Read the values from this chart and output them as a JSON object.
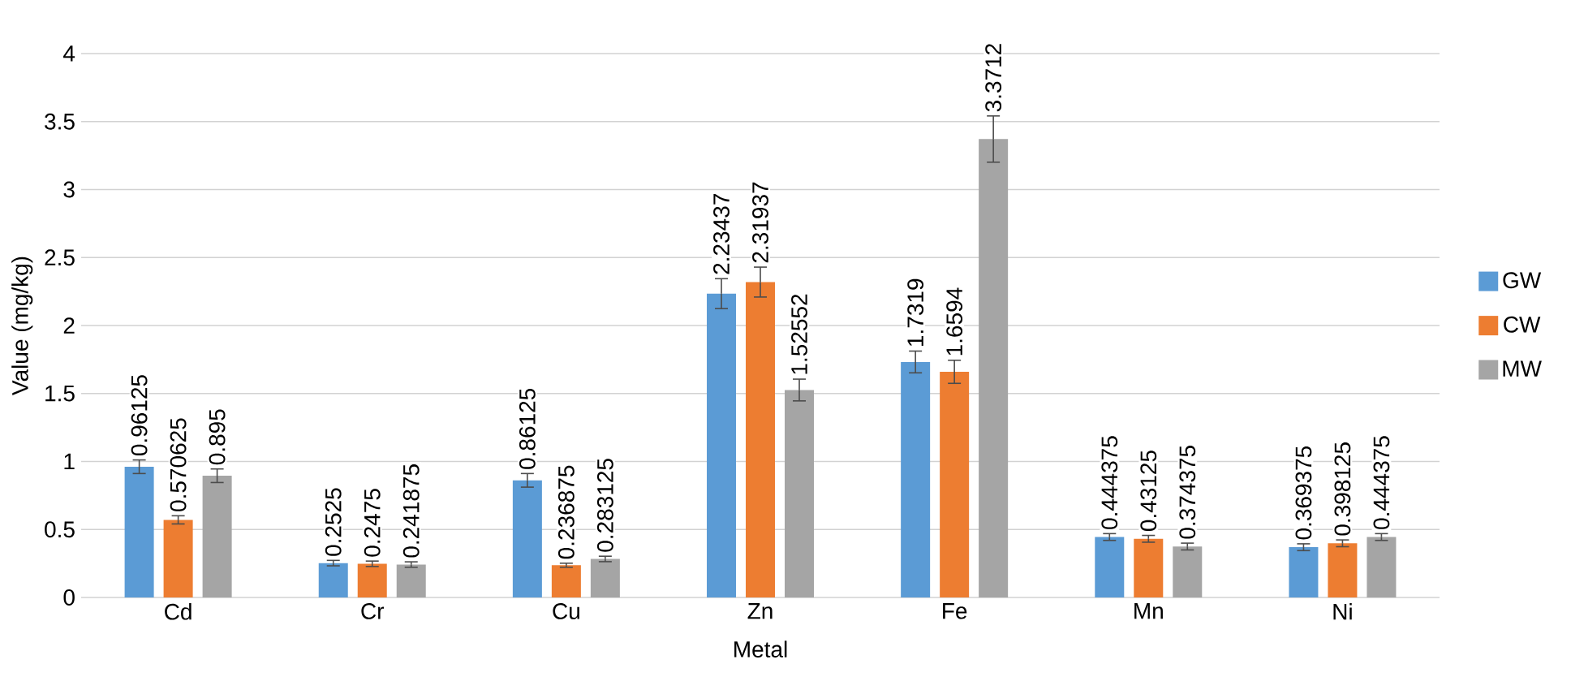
{
  "chart_data": {
    "type": "bar",
    "xlabel": "Metal",
    "ylabel": "Value (mg/kg)",
    "categories": [
      "Cd",
      "Cr",
      "Cu",
      "Zn",
      "Fe",
      "Mn",
      "Ni"
    ],
    "series": [
      {
        "name": "GW",
        "color": "#5b9bd5",
        "values": [
          0.96125,
          0.2525,
          0.86125,
          2.23437,
          1.7319,
          0.444375,
          0.369375
        ],
        "errors": [
          0.05,
          0.02,
          0.05,
          0.11,
          0.08,
          0.025,
          0.025
        ]
      },
      {
        "name": "CW",
        "color": "#ed7d31",
        "values": [
          0.570625,
          0.2475,
          0.236875,
          2.31937,
          1.6594,
          0.43125,
          0.398125
        ],
        "errors": [
          0.03,
          0.02,
          0.015,
          0.11,
          0.085,
          0.025,
          0.025
        ]
      },
      {
        "name": "MW",
        "color": "#a5a5a5",
        "values": [
          0.895,
          0.241875,
          0.283125,
          1.52552,
          3.3712,
          0.374375,
          0.444375
        ],
        "errors": [
          0.05,
          0.02,
          0.02,
          0.08,
          0.17,
          0.025,
          0.025
        ]
      }
    ],
    "ylim": [
      0,
      4
    ],
    "yticks": [
      0,
      0.5,
      1,
      1.5,
      2,
      2.5,
      3,
      3.5,
      4
    ],
    "grid": "y",
    "legend": "right",
    "data_labels": true
  }
}
